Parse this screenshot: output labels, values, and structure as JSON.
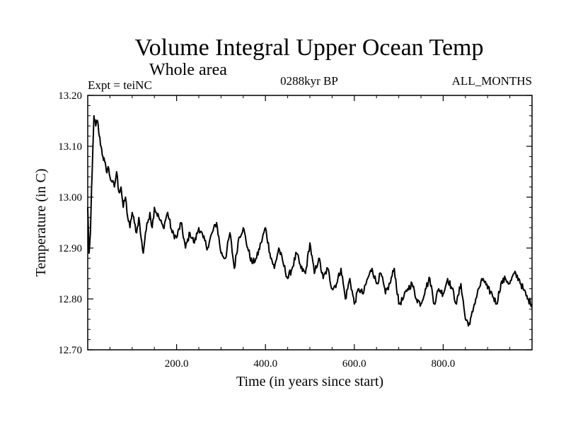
{
  "chart_data": {
    "type": "line",
    "title": "Volume Integral Upper Ocean Temp",
    "subtitle": "Whole area",
    "experiment_label": "Expt = teiNC",
    "period_label": "0288kyr BP",
    "months_label": "ALL_MONTHS",
    "xlabel": "Time (in years since start)",
    "ylabel": "Temperature (in C)",
    "xlim": [
      0,
      1000
    ],
    "ylim": [
      12.7,
      13.2
    ],
    "x_ticks": [
      200,
      400,
      600,
      800
    ],
    "x_tick_labels": [
      "200.0",
      "400.0",
      "600.0",
      "800.0"
    ],
    "y_ticks": [
      12.7,
      12.8,
      12.9,
      13.0,
      13.1,
      13.2
    ],
    "y_tick_labels": [
      "12.70",
      "12.80",
      "12.90",
      "13.00",
      "13.10",
      "13.20"
    ],
    "grid": false,
    "line_color": "#000000",
    "series": [
      {
        "name": "Temperature",
        "x": [
          0,
          3,
          6,
          10,
          14,
          18,
          22,
          26,
          30,
          34,
          38,
          42,
          46,
          50,
          55,
          60,
          65,
          70,
          75,
          80,
          85,
          90,
          95,
          100,
          105,
          110,
          115,
          120,
          125,
          130,
          135,
          140,
          145,
          150,
          160,
          170,
          180,
          190,
          200,
          210,
          220,
          230,
          240,
          250,
          260,
          270,
          280,
          290,
          300,
          310,
          320,
          330,
          340,
          350,
          360,
          370,
          380,
          390,
          400,
          410,
          420,
          430,
          440,
          450,
          460,
          470,
          480,
          490,
          500,
          510,
          520,
          530,
          540,
          550,
          560,
          570,
          580,
          590,
          600,
          610,
          620,
          630,
          640,
          650,
          660,
          670,
          680,
          690,
          700,
          710,
          720,
          730,
          740,
          750,
          760,
          770,
          780,
          790,
          800,
          810,
          820,
          830,
          840,
          850,
          860,
          870,
          880,
          890,
          900,
          910,
          920,
          930,
          940,
          950,
          960,
          970,
          980,
          990,
          1000
        ],
        "values": [
          12.98,
          12.89,
          12.93,
          13.05,
          13.16,
          13.14,
          13.15,
          13.12,
          13.1,
          13.08,
          13.07,
          13.05,
          13.06,
          13.04,
          13.03,
          13.02,
          13.05,
          13.01,
          13.02,
          12.98,
          13.0,
          12.96,
          12.94,
          12.97,
          12.95,
          12.93,
          12.96,
          12.92,
          12.89,
          12.93,
          12.95,
          12.97,
          12.94,
          12.98,
          12.96,
          12.94,
          12.97,
          12.93,
          12.92,
          12.95,
          12.9,
          12.93,
          12.91,
          12.94,
          12.92,
          12.9,
          12.93,
          12.95,
          12.89,
          12.88,
          12.93,
          12.86,
          12.92,
          12.94,
          12.9,
          12.87,
          12.88,
          12.91,
          12.94,
          12.89,
          12.86,
          12.9,
          12.87,
          12.84,
          12.86,
          12.89,
          12.86,
          12.85,
          12.91,
          12.85,
          12.88,
          12.84,
          12.86,
          12.82,
          12.83,
          12.86,
          12.8,
          12.84,
          12.79,
          12.82,
          12.81,
          12.84,
          12.86,
          12.83,
          12.85,
          12.81,
          12.83,
          12.86,
          12.79,
          12.8,
          12.82,
          12.83,
          12.8,
          12.79,
          12.82,
          12.84,
          12.79,
          12.82,
          12.81,
          12.84,
          12.82,
          12.79,
          12.83,
          12.76,
          12.75,
          12.79,
          12.82,
          12.84,
          12.82,
          12.81,
          12.79,
          12.83,
          12.84,
          12.83,
          12.85,
          12.84,
          12.82,
          12.8,
          12.79
        ]
      }
    ]
  }
}
